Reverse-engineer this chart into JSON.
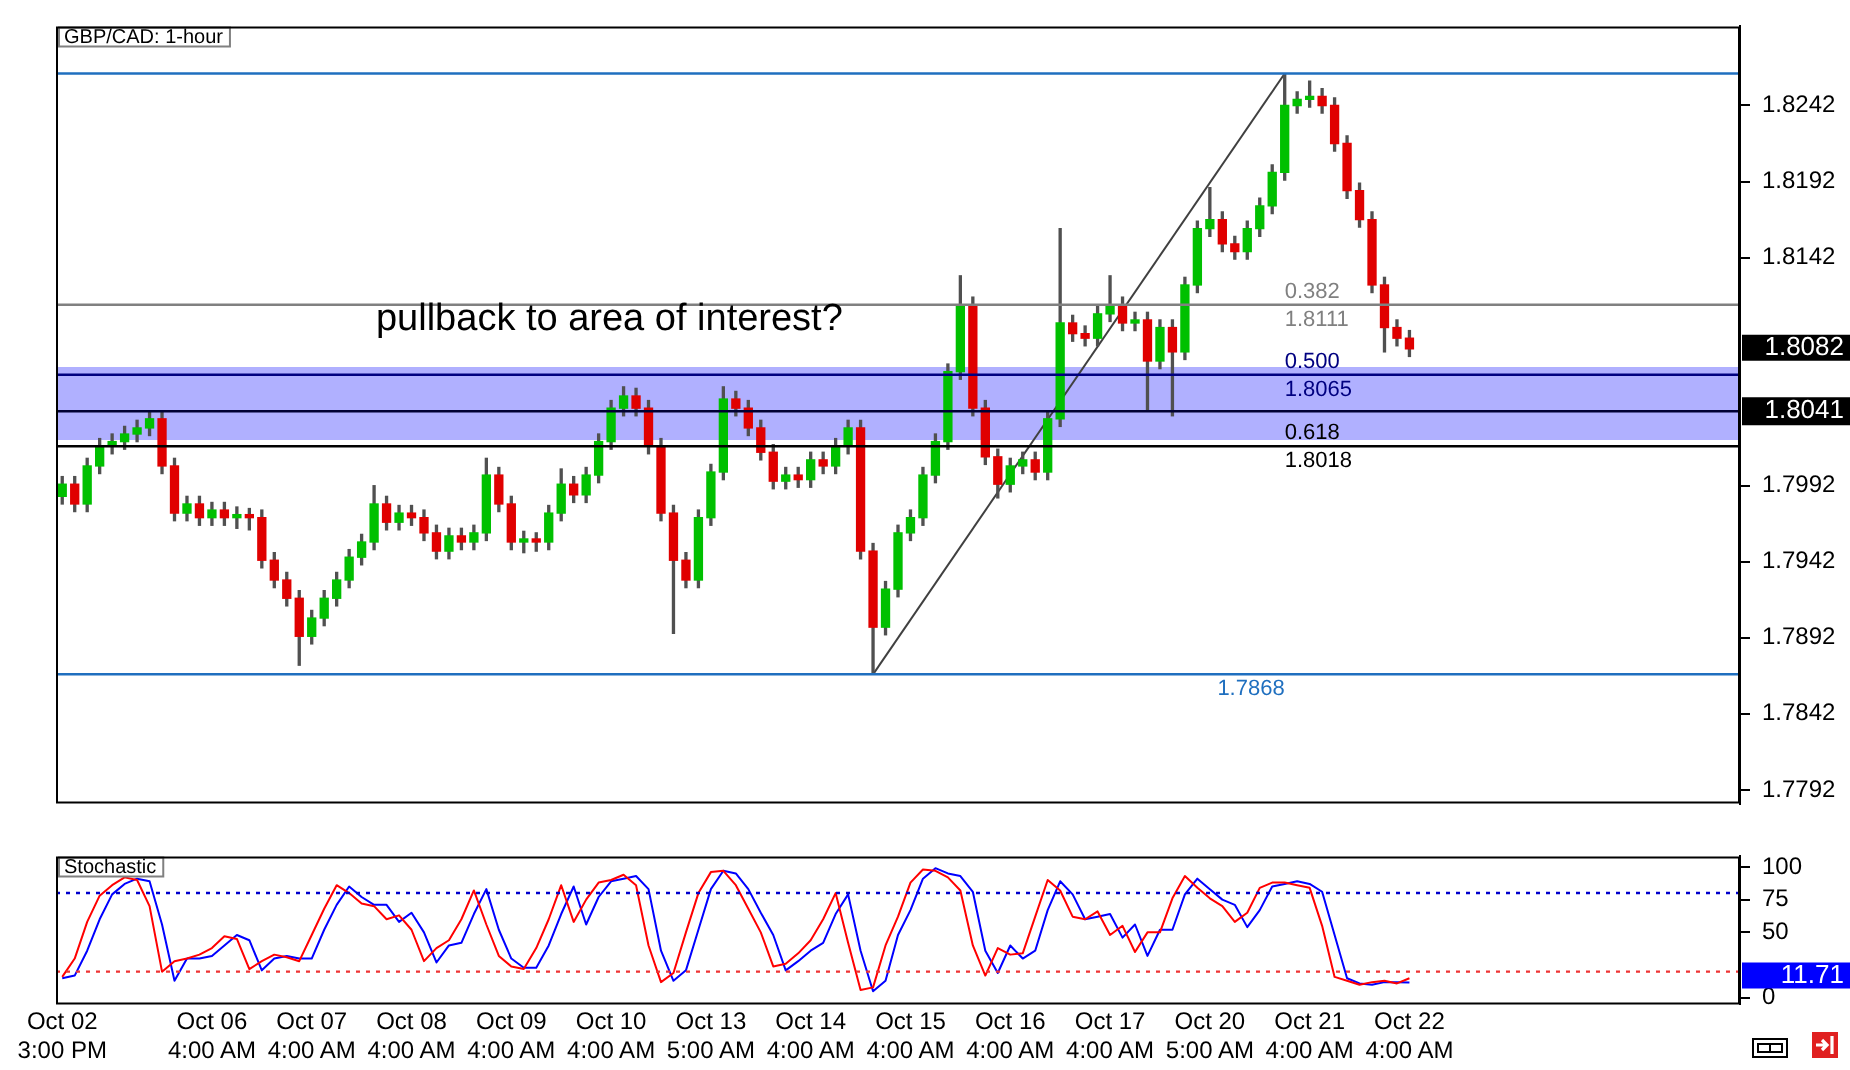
{
  "chart_data": [
    {
      "type": "candlestick",
      "title": "GBP/CAD: 1-hour",
      "categories": [
        null,
        null,
        null,
        null,
        null,
        null,
        null,
        null,
        null,
        null,
        null,
        null,
        null,
        null,
        null,
        null,
        null,
        null,
        null,
        null,
        null,
        null,
        null,
        null,
        null,
        null,
        null,
        null,
        null,
        null,
        null,
        null,
        null,
        null,
        null,
        null,
        null,
        null,
        null,
        null,
        null,
        null,
        null,
        null,
        null,
        null,
        null,
        null,
        null,
        null,
        null,
        null,
        null,
        null,
        null,
        null,
        null,
        null,
        null,
        null,
        null,
        null,
        null,
        null,
        null,
        null,
        null,
        null,
        null,
        null,
        null,
        null,
        null,
        null,
        null,
        null,
        null,
        null,
        null,
        null,
        null,
        null,
        null,
        null,
        null,
        null,
        null,
        null,
        null,
        null,
        null,
        null,
        null,
        null,
        null,
        null,
        null,
        null,
        null,
        null,
        null,
        null,
        null,
        null,
        null,
        null,
        null,
        null,
        null,
        null,
        null,
        null,
        null,
        null,
        null,
        null,
        null,
        null,
        null,
        null,
        null,
        null,
        null,
        null,
        null,
        null,
        null,
        null,
        null,
        null,
        null,
        null,
        null,
        null,
        null
      ],
      "ohlc": [
        [
          1.7985,
          1.7998,
          1.798,
          1.7993
        ],
        [
          1.7993,
          1.7998,
          1.7975,
          1.798
        ],
        [
          1.798,
          1.801,
          1.7975,
          1.8005
        ],
        [
          1.8005,
          1.8023,
          1.8,
          1.8018
        ],
        [
          1.8018,
          1.8026,
          1.8013,
          1.8021
        ],
        [
          1.8021,
          1.8031,
          1.8016,
          1.8026
        ],
        [
          1.8026,
          1.8035,
          1.8021,
          1.803
        ],
        [
          1.803,
          1.8041,
          1.8025,
          1.8036
        ],
        [
          1.8036,
          1.8041,
          1.8,
          1.8005
        ],
        [
          1.8005,
          1.801,
          1.7969,
          1.7974
        ],
        [
          1.7974,
          1.7985,
          1.7969,
          1.798
        ],
        [
          1.798,
          1.7985,
          1.7966,
          1.7971
        ],
        [
          1.7971,
          1.7981,
          1.7966,
          1.7976
        ],
        [
          1.7976,
          1.7981,
          1.7966,
          1.7971
        ],
        [
          1.7971,
          1.7978,
          1.7964,
          1.7973
        ],
        [
          1.7973,
          1.7977,
          1.7963,
          1.7971
        ],
        [
          1.7971,
          1.7976,
          1.7938,
          1.7943
        ],
        [
          1.7943,
          1.7948,
          1.7925,
          1.793
        ],
        [
          1.793,
          1.7935,
          1.7913,
          1.7918
        ],
        [
          1.7918,
          1.7923,
          1.7874,
          1.7893
        ],
        [
          1.7893,
          1.791,
          1.7888,
          1.7905
        ],
        [
          1.7905,
          1.7923,
          1.79,
          1.7918
        ],
        [
          1.7918,
          1.7935,
          1.7913,
          1.793
        ],
        [
          1.793,
          1.795,
          1.7925,
          1.7945
        ],
        [
          1.7945,
          1.796,
          1.794,
          1.7955
        ],
        [
          1.7955,
          1.7992,
          1.795,
          1.798
        ],
        [
          1.798,
          1.7985,
          1.7963,
          1.7968
        ],
        [
          1.7968,
          1.7979,
          1.7963,
          1.7974
        ],
        [
          1.7974,
          1.7979,
          1.7966,
          1.7971
        ],
        [
          1.7971,
          1.7976,
          1.7956,
          1.7961
        ],
        [
          1.7961,
          1.7966,
          1.7944,
          1.7949
        ],
        [
          1.7949,
          1.7964,
          1.7944,
          1.7959
        ],
        [
          1.7959,
          1.7964,
          1.795,
          1.7955
        ],
        [
          1.7955,
          1.7966,
          1.795,
          1.7961
        ],
        [
          1.7961,
          1.801,
          1.7956,
          1.7999
        ],
        [
          1.7999,
          1.8004,
          1.7975,
          1.798
        ],
        [
          1.798,
          1.7985,
          1.795,
          1.7955
        ],
        [
          1.7955,
          1.7962,
          1.7948,
          1.7957
        ],
        [
          1.7957,
          1.7961,
          1.7949,
          1.7955
        ],
        [
          1.7955,
          1.7979,
          1.795,
          1.7974
        ],
        [
          1.7974,
          1.8003,
          1.7969,
          1.7993
        ],
        [
          1.7993,
          1.7998,
          1.7981,
          1.7986
        ],
        [
          1.7986,
          1.8004,
          1.7981,
          1.7999
        ],
        [
          1.7999,
          1.8026,
          1.7994,
          1.8021
        ],
        [
          1.8021,
          1.8048,
          1.8016,
          1.8043
        ],
        [
          1.8043,
          1.8057,
          1.8038,
          1.8051
        ],
        [
          1.8051,
          1.8056,
          1.8038,
          1.8043
        ],
        [
          1.8043,
          1.8048,
          1.8013,
          1.8018
        ],
        [
          1.8018,
          1.8023,
          1.7969,
          1.7974
        ],
        [
          1.7974,
          1.7979,
          1.7895,
          1.7943
        ],
        [
          1.7943,
          1.7948,
          1.7925,
          1.793
        ],
        [
          1.793,
          1.7976,
          1.7925,
          1.7971
        ],
        [
          1.7971,
          1.8006,
          1.7966,
          1.8001
        ],
        [
          1.8001,
          1.8057,
          1.7996,
          1.8049
        ],
        [
          1.8049,
          1.8054,
          1.8038,
          1.8043
        ],
        [
          1.8043,
          1.8048,
          1.8025,
          1.803
        ],
        [
          1.803,
          1.8035,
          1.8009,
          1.8014
        ],
        [
          1.8014,
          1.8019,
          1.799,
          1.7995
        ],
        [
          1.7995,
          1.8004,
          1.799,
          1.7999
        ],
        [
          1.7999,
          1.8004,
          1.7991,
          1.7996
        ],
        [
          1.7996,
          1.8014,
          1.7991,
          1.8009
        ],
        [
          1.8009,
          1.8014,
          1.8,
          1.8005
        ],
        [
          1.8005,
          1.8023,
          1.8,
          1.8018
        ],
        [
          1.8018,
          1.8035,
          1.8013,
          1.803
        ],
        [
          1.803,
          1.8035,
          1.7944,
          1.7949
        ],
        [
          1.7949,
          1.7954,
          1.7868,
          1.7899
        ],
        [
          1.7899,
          1.7929,
          1.7894,
          1.7924
        ],
        [
          1.7924,
          1.7966,
          1.7919,
          1.7961
        ],
        [
          1.7961,
          1.7976,
          1.7956,
          1.7971
        ],
        [
          1.7971,
          1.8004,
          1.7966,
          1.7999
        ],
        [
          1.7999,
          1.8026,
          1.7994,
          1.8021
        ],
        [
          1.8021,
          1.8072,
          1.8016,
          1.8067
        ],
        [
          1.8067,
          1.813,
          1.8062,
          1.8111
        ],
        [
          1.8111,
          1.8116,
          1.8038,
          1.8043
        ],
        [
          1.8043,
          1.8048,
          1.8006,
          1.8011
        ],
        [
          1.8011,
          1.8016,
          1.7984,
          1.7993
        ],
        [
          1.7993,
          1.801,
          1.7988,
          1.8005
        ],
        [
          1.8005,
          1.8014,
          1.8,
          1.8009
        ],
        [
          1.8009,
          1.8014,
          1.7996,
          1.8001
        ],
        [
          1.8001,
          1.8041,
          1.7996,
          1.8036
        ],
        [
          1.8036,
          1.8161,
          1.8031,
          1.8099
        ],
        [
          1.8099,
          1.8104,
          1.8087,
          1.8092
        ],
        [
          1.8092,
          1.8097,
          1.8084,
          1.8089
        ],
        [
          1.8089,
          1.811,
          1.8084,
          1.8105
        ],
        [
          1.8105,
          1.813,
          1.81,
          1.8111
        ],
        [
          1.8111,
          1.8116,
          1.8094,
          1.8099
        ],
        [
          1.8099,
          1.8106,
          1.8094,
          1.8101
        ],
        [
          1.8101,
          1.8106,
          1.8042,
          1.8074
        ],
        [
          1.8074,
          1.8101,
          1.8069,
          1.8096
        ],
        [
          1.8096,
          1.8101,
          1.8038,
          1.808
        ],
        [
          1.808,
          1.8129,
          1.8075,
          1.8124
        ],
        [
          1.8124,
          1.8166,
          1.8119,
          1.8161
        ],
        [
          1.8161,
          1.8188,
          1.8156,
          1.8167
        ],
        [
          1.8167,
          1.8172,
          1.8146,
          1.8151
        ],
        [
          1.8151,
          1.8156,
          1.8141,
          1.8146
        ],
        [
          1.8146,
          1.8166,
          1.8141,
          1.8161
        ],
        [
          1.8161,
          1.8181,
          1.8156,
          1.8176
        ],
        [
          1.8176,
          1.8203,
          1.8171,
          1.8198
        ],
        [
          1.8198,
          1.8263,
          1.8193,
          1.8242
        ],
        [
          1.8242,
          1.8251,
          1.8237,
          1.8246
        ],
        [
          1.8246,
          1.8258,
          1.8241,
          1.8248
        ],
        [
          1.8248,
          1.8253,
          1.8237,
          1.8242
        ],
        [
          1.8242,
          1.8247,
          1.8212,
          1.8217
        ],
        [
          1.8217,
          1.8222,
          1.8181,
          1.8186
        ],
        [
          1.8186,
          1.8191,
          1.8162,
          1.8167
        ],
        [
          1.8167,
          1.8172,
          1.8119,
          1.8124
        ],
        [
          1.8124,
          1.8129,
          1.808,
          1.8096
        ],
        [
          1.8096,
          1.8101,
          1.8084,
          1.8089
        ],
        [
          1.8089,
          1.8094,
          1.8077,
          1.8082
        ],
        null,
        null,
        null,
        null,
        null,
        null,
        null,
        null,
        null,
        null,
        null,
        null,
        null,
        null,
        null,
        null,
        null,
        null,
        null,
        null,
        null,
        null,
        null,
        null,
        null,
        null
      ],
      "series": [
        {
          "type": "line",
          "color": "#404040",
          "values": [
            null,
            null,
            null,
            null,
            null,
            null,
            null,
            null,
            null,
            null,
            null,
            null,
            null,
            null,
            null,
            null,
            null,
            null,
            null,
            null,
            null,
            null,
            null,
            null,
            null,
            null,
            null,
            null,
            null,
            null,
            null,
            null,
            null,
            null,
            null,
            null,
            null,
            null,
            null,
            null,
            null,
            null,
            null,
            null,
            null,
            null,
            null,
            null,
            null,
            null,
            null,
            null,
            null,
            null,
            null,
            null,
            null,
            null,
            null,
            null,
            null,
            null,
            null,
            null,
            null,
            1.7868,
            null,
            null,
            null,
            null,
            null,
            null,
            null,
            null,
            null,
            null,
            null,
            null,
            null,
            null,
            null,
            null,
            null,
            null,
            null,
            null,
            null,
            null,
            null,
            null,
            null,
            null,
            null,
            null,
            null,
            null,
            null,
            null,
            1.8263,
            null,
            null,
            null,
            null,
            null,
            null,
            null,
            null,
            null,
            null,
            null,
            null,
            null,
            null,
            null,
            null,
            null,
            null,
            null,
            null,
            null,
            null,
            null,
            null,
            null,
            null,
            null,
            null,
            null,
            null,
            null,
            null,
            null,
            null,
            null,
            null
          ]
        }
      ],
      "ylim": [
        1.7783,
        1.8294
      ],
      "yticks": [
        1.7792,
        1.7842,
        1.7892,
        1.7942,
        1.7992,
        1.8142,
        1.8192,
        1.8242
      ],
      "tick_labels": "y",
      "marker": "none",
      "bands": [
        {
          "axis": "y",
          "from": 1.8022,
          "to": 1.807,
          "color": "#b0b0ff"
        }
      ],
      "ref_lines": [
        {
          "axis": "y",
          "value": 1.8263,
          "color": "#1f6fbf"
        },
        {
          "axis": "y",
          "value": 1.7868,
          "label": "1.7868",
          "color": "#1f6fbf"
        },
        {
          "axis": "y",
          "value": 1.8111,
          "label": "0.382\n1.8111",
          "color": "#808080"
        },
        {
          "axis": "y",
          "value": 1.8065,
          "label": "0.500\n1.8065",
          "color": "#000080"
        },
        {
          "axis": "y",
          "value": 1.8018,
          "label": "0.618\n1.8018",
          "color": "#000000"
        },
        {
          "axis": "y",
          "value": 1.8041,
          "label": "1.8041",
          "color": "#000033"
        }
      ],
      "annotations": [
        "pullback to area of interest?",
        "1.8082"
      ]
    },
    {
      "type": "line",
      "title": "Stochastic",
      "categories": [
        "Oct 02\n3:00 PM",
        null,
        null,
        null,
        null,
        null,
        null,
        null,
        null,
        null,
        null,
        null,
        "Oct 06\n4:00 AM",
        null,
        null,
        null,
        null,
        null,
        null,
        null,
        "Oct 07\n4:00 AM",
        null,
        null,
        null,
        null,
        null,
        null,
        null,
        "Oct 08\n4:00 AM",
        null,
        null,
        null,
        null,
        null,
        null,
        null,
        "Oct 09\n4:00 AM",
        null,
        null,
        null,
        null,
        null,
        null,
        null,
        "Oct 10\n4:00 AM",
        null,
        null,
        null,
        null,
        null,
        null,
        null,
        "Oct 13\n5:00 AM",
        null,
        null,
        null,
        null,
        null,
        null,
        null,
        "Oct 14\n4:00 AM",
        null,
        null,
        null,
        null,
        null,
        null,
        null,
        "Oct 15\n4:00 AM",
        null,
        null,
        null,
        null,
        null,
        null,
        null,
        "Oct 16\n4:00 AM",
        null,
        null,
        null,
        null,
        null,
        null,
        null,
        "Oct 17\n4:00 AM",
        null,
        null,
        null,
        null,
        null,
        null,
        null,
        "Oct 20\n5:00 AM",
        null,
        null,
        null,
        null,
        null,
        null,
        null,
        "Oct 21\n4:00 AM",
        null,
        null,
        null,
        null,
        null,
        null,
        null,
        "Oct 22\n4:00 AM",
        null,
        null,
        null,
        null,
        null,
        null,
        null,
        null,
        null,
        null,
        null,
        null,
        null,
        null,
        null,
        null,
        null,
        null,
        null,
        null,
        null,
        null,
        null,
        null,
        null,
        null
      ],
      "series": [
        {
          "color": "#ff0000",
          "values": [
            16,
            30,
            58,
            78,
            86,
            92,
            90,
            70,
            20,
            28,
            30,
            33,
            38,
            47,
            45,
            22,
            28,
            33,
            31,
            28,
            48,
            68,
            86,
            80,
            72,
            70,
            60,
            63,
            52,
            28,
            38,
            44,
            60,
            82,
            56,
            32,
            24,
            22,
            38,
            60,
            86,
            58,
            75,
            88,
            90,
            94,
            86,
            40,
            12,
            19,
            50,
            80,
            96,
            97,
            86,
            68,
            50,
            24,
            26,
            34,
            44,
            60,
            80,
            42,
            6,
            8,
            40,
            62,
            88,
            98,
            97,
            92,
            82,
            40,
            17,
            38,
            33,
            34,
            62,
            90,
            82,
            62,
            60,
            66,
            48,
            55,
            35,
            50,
            50,
            76,
            93,
            84,
            76,
            70,
            58,
            65,
            84,
            88,
            88,
            86,
            84,
            55,
            16,
            13,
            10,
            12,
            13,
            11,
            15,
            null,
            null,
            null,
            null,
            null,
            null,
            null,
            null,
            null,
            null,
            null,
            null,
            null,
            null,
            null,
            null,
            null,
            null,
            null,
            null,
            null,
            null,
            null,
            null,
            null,
            null
          ]
        },
        {
          "color": "#0000ff",
          "values": [
            15,
            17,
            36,
            60,
            79,
            87,
            91,
            89,
            56,
            13,
            30,
            30,
            32,
            40,
            48,
            44,
            21,
            30,
            32,
            30,
            30,
            52,
            71,
            85,
            77,
            71,
            71,
            58,
            65,
            50,
            27,
            40,
            42,
            64,
            83,
            52,
            30,
            23,
            23,
            40,
            64,
            85,
            56,
            77,
            89,
            91,
            93,
            83,
            36,
            13,
            21,
            52,
            83,
            97,
            95,
            83,
            65,
            48,
            21,
            28,
            36,
            42,
            64,
            79,
            36,
            5,
            13,
            48,
            67,
            91,
            99,
            95,
            93,
            81,
            36,
            19,
            40,
            30,
            36,
            67,
            89,
            79,
            60,
            62,
            64,
            46,
            56,
            32,
            52,
            52,
            79,
            91,
            83,
            75,
            71,
            54,
            67,
            85,
            87,
            89,
            87,
            81,
            48,
            15,
            11,
            10,
            12,
            12,
            11.71,
            null,
            null,
            null,
            null,
            null,
            null,
            null,
            null,
            null,
            null,
            null,
            null,
            null,
            null,
            null,
            null,
            null,
            null,
            null,
            null,
            null,
            null,
            null,
            null,
            null,
            null
          ]
        }
      ],
      "ylim": [
        -5,
        108
      ],
      "yticks": [
        0,
        50,
        75,
        100
      ],
      "marker": "none",
      "ref_lines": [
        {
          "axis": "y",
          "value": 80,
          "color": "#0000cc",
          "line_style": "dotted"
        },
        {
          "axis": "y",
          "value": 20,
          "color": "#ee3333",
          "line_style": "dotted"
        }
      ],
      "annotations": [
        "11.71"
      ]
    }
  ]
}
